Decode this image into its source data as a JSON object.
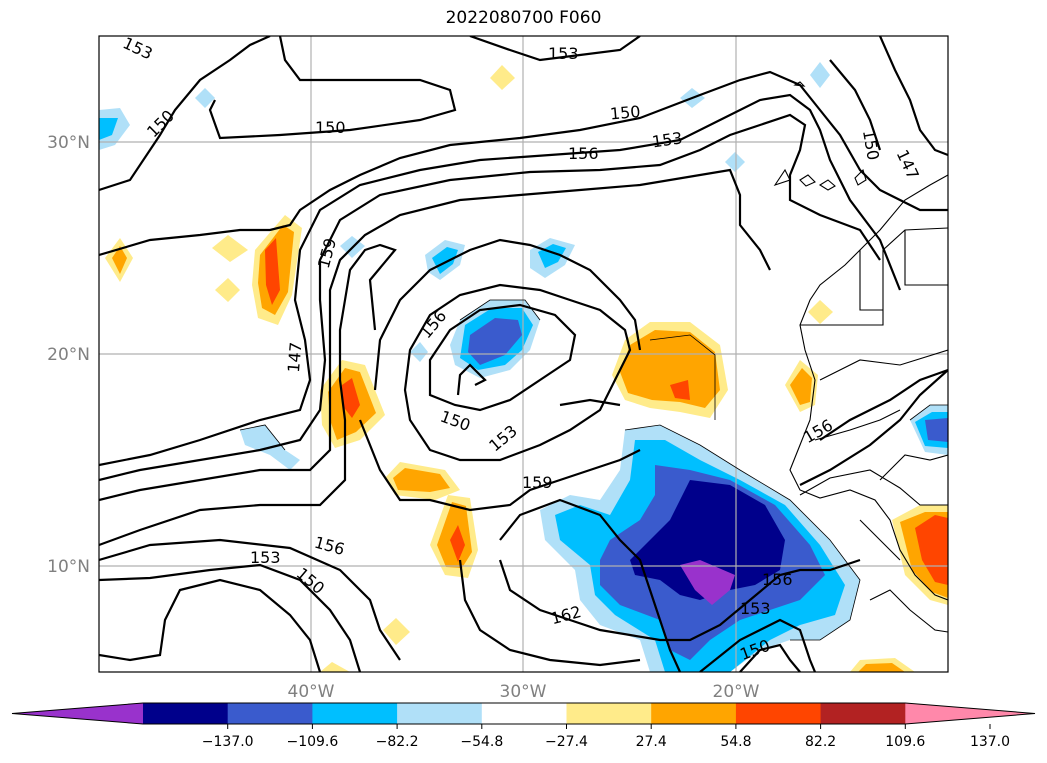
{
  "title": "2022080700 F060",
  "axes": {
    "lon_labels": [
      "40°W",
      "30°W",
      "20°W"
    ],
    "lat_labels": [
      "30°N",
      "20°N",
      "10°N"
    ]
  },
  "contour_labels": [
    "153",
    "150",
    "150",
    "153",
    "150",
    "153",
    "156",
    "150",
    "147",
    "159",
    "156",
    "147",
    "150",
    "153",
    "159",
    "153",
    "156",
    "150",
    "162",
    "156",
    "153",
    "150",
    "156"
  ],
  "colorbar": {
    "colors": [
      "#9932cc",
      "#00008b",
      "#3a5bcd",
      "#00bfff",
      "#b0e0f8",
      "#ffffff",
      "#ffeb8a",
      "#ffa500",
      "#ff4500",
      "#b22222",
      "#ff88aa"
    ],
    "tick_labels": [
      "−137.0",
      "−109.6",
      "−82.2",
      "−54.8",
      "−27.4",
      "27.4",
      "54.8",
      "82.2",
      "109.6",
      "137.0"
    ]
  }
}
